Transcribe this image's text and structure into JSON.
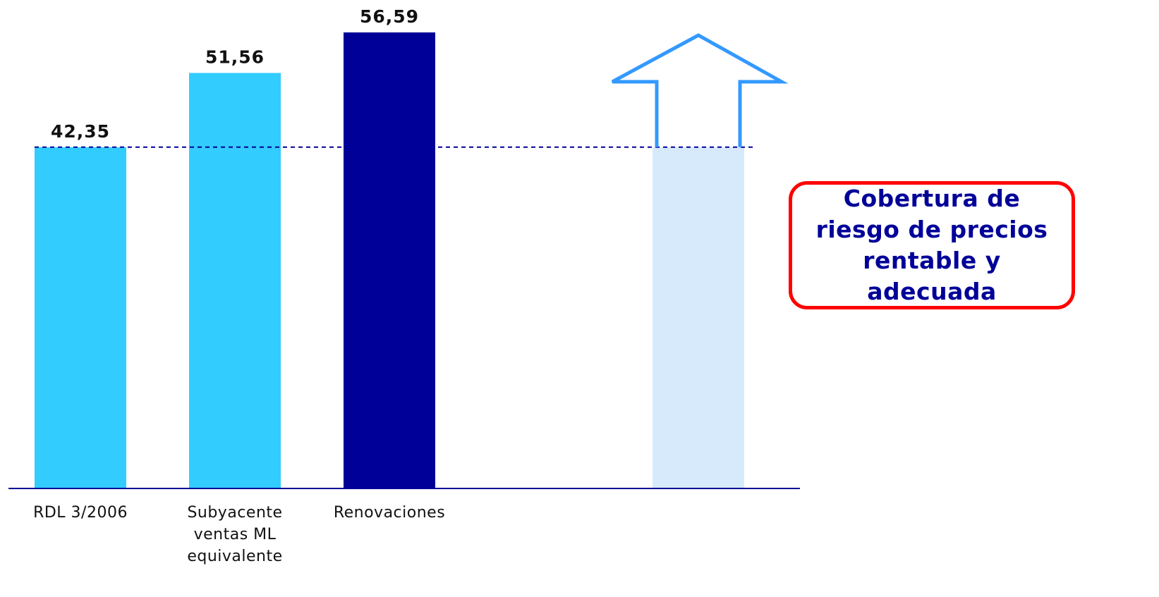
{
  "chart_data": {
    "type": "bar",
    "categories": [
      "RDL 3/2006",
      "Subyacente ventas ML equivalente",
      "Renovaciones",
      ""
    ],
    "values": [
      42.35,
      51.56,
      56.59,
      42.35
    ],
    "value_labels": [
      "42,35",
      "51,56",
      "56,59",
      ""
    ],
    "category_labels": [
      [
        "RDL 3/2006"
      ],
      [
        "Subyacente",
        "ventas ML",
        "equivalente"
      ],
      [
        "Renovaciones"
      ],
      []
    ],
    "reference_line": 42.35,
    "ylim": [
      0,
      56.59
    ],
    "grid": false,
    "colors": {
      "light_bar": "#33ccff",
      "dark_bar": "#000099",
      "ghost_bar": "#d6eafc",
      "arrow_outline": "#3399ff",
      "reference_line": "#000099",
      "axis": "#000099"
    },
    "bar_colors": [
      "#33ccff",
      "#33ccff",
      "#000099",
      "#d6eafc"
    ],
    "annotation_icon": "up-arrow-outline-icon"
  },
  "callout": {
    "text": "Cobertura de riesgo de precios rentable y adecuada",
    "border_color": "#ff0000",
    "text_color": "#000099"
  }
}
